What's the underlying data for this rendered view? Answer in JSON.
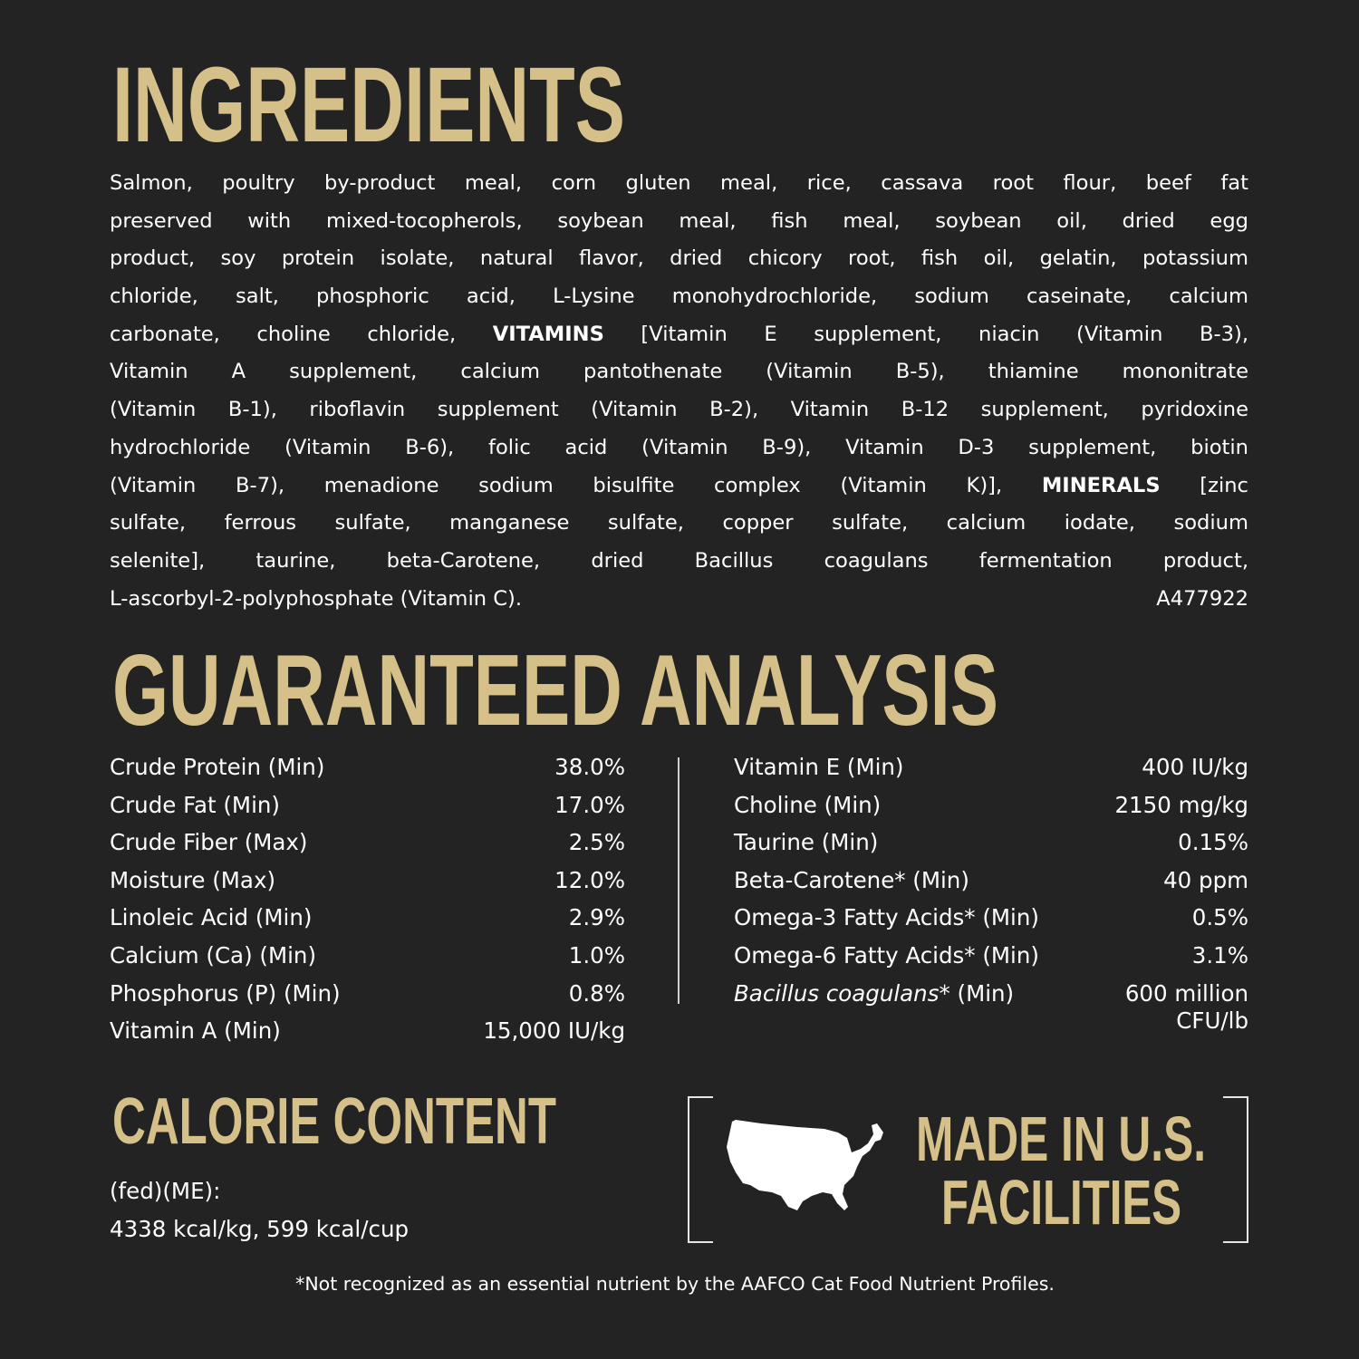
{
  "colors": {
    "background": "#222322",
    "heading": "#d6c08a",
    "text": "#ffffff"
  },
  "ingredients": {
    "title": "INGREDIENTS",
    "lines": [
      [
        {
          "t": "Salmon, poultry by-product meal, corn gluten meal, rice, cassava root flour, beef fat"
        }
      ],
      [
        {
          "t": "preserved with mixed-tocopherols, soybean meal, fish meal, soybean oil, dried egg"
        }
      ],
      [
        {
          "t": "product, soy protein isolate, natural flavor, dried chicory root, fish oil, gelatin, potassium"
        }
      ],
      [
        {
          "t": "chloride, salt, phosphoric acid, L-Lysine monohydrochloride, sodium caseinate, calcium"
        }
      ],
      [
        {
          "t": "carbonate, choline chloride, "
        },
        {
          "t": "VITAMINS",
          "bold": true
        },
        {
          "t": " [Vitamin E supplement, niacin (Vitamin B-3),"
        }
      ],
      [
        {
          "t": "Vitamin A supplement, calcium pantothenate (Vitamin B-5), thiamine mononitrate"
        }
      ],
      [
        {
          "t": "(Vitamin B-1), riboflavin supplement (Vitamin B-2), Vitamin B-12 supplement, pyridoxine"
        }
      ],
      [
        {
          "t": "hydrochloride (Vitamin B-6), folic acid (Vitamin B-9), Vitamin D-3 supplement, biotin"
        }
      ],
      [
        {
          "t": "(Vitamin B-7), menadione sodium bisulfite complex (Vitamin K)], "
        },
        {
          "t": "MINERALS",
          "bold": true
        },
        {
          "t": " [zinc"
        }
      ],
      [
        {
          "t": "sulfate, ferrous sulfate, manganese sulfate, copper sulfate, calcium iodate, sodium"
        }
      ],
      [
        {
          "t": "selenite], taurine, beta-Carotene, dried Bacillus coagulans fermentation product,"
        }
      ],
      [
        {
          "t": "L-ascorbyl-2-polyphosphate (Vitamin C)."
        }
      ]
    ],
    "code": "A477922"
  },
  "analysis": {
    "title": "GUARANTEED ANALYSIS",
    "left": [
      {
        "label": "Crude Protein (Min)",
        "value": "38.0%"
      },
      {
        "label": "Crude Fat (Min)",
        "value": "17.0%"
      },
      {
        "label": "Crude Fiber (Max)",
        "value": "2.5%"
      },
      {
        "label": "Moisture (Max)",
        "value": "12.0%"
      },
      {
        "label": "Linoleic Acid (Min)",
        "value": "2.9%"
      },
      {
        "label": "Calcium (Ca) (Min)",
        "value": "1.0%"
      },
      {
        "label": "Phosphorus (P) (Min)",
        "value": "0.8%"
      },
      {
        "label": "Vitamin A (Min)",
        "value": "15,000 IU/kg"
      }
    ],
    "right": [
      {
        "label": "Vitamin E (Min)",
        "value": "400 IU/kg"
      },
      {
        "label": "Choline (Min)",
        "value": "2150 mg/kg"
      },
      {
        "label": "Taurine (Min)",
        "value": "0.15%"
      },
      {
        "label": "Beta-Carotene* (Min)",
        "value": "40 ppm"
      },
      {
        "label": "Omega-3 Fatty Acids* (Min)",
        "value": "0.5%"
      },
      {
        "label": "Omega-6 Fatty Acids* (Min)",
        "value": "3.1%"
      }
    ],
    "bacillus": {
      "label_italic": "Bacillus coagulans",
      "label_rest": "* (Min)",
      "value_line1": "600 million",
      "value_line2": "CFU/lb"
    }
  },
  "calorie": {
    "title": "CALORIE CONTENT",
    "line1": "(fed)(ME):",
    "line2": "4338 kcal/kg, 599 kcal/cup"
  },
  "badge": {
    "line1": "MADE IN U.S.",
    "line2": "FACILITIES",
    "icon": "usa-map-icon"
  },
  "footnote": "*Not recognized as an essential nutrient by the AAFCO Cat Food Nutrient Profiles."
}
